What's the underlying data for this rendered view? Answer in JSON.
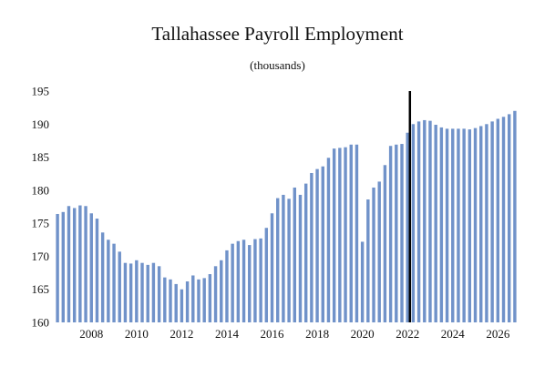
{
  "chart_data": {
    "type": "bar",
    "title": "Tallahassee Payroll Employment",
    "subtitle": "(thousands)",
    "xlabel": "",
    "ylabel": "",
    "ylim": [
      160,
      195
    ],
    "y_ticks": [
      160,
      165,
      170,
      175,
      180,
      185,
      190,
      195
    ],
    "x_ticks": [
      {
        "label": "2008",
        "index": 6
      },
      {
        "label": "2010",
        "index": 14
      },
      {
        "label": "2012",
        "index": 22
      },
      {
        "label": "2014",
        "index": 30
      },
      {
        "label": "2016",
        "index": 38
      },
      {
        "label": "2018",
        "index": 46
      },
      {
        "label": "2020",
        "index": 54
      },
      {
        "label": "2022",
        "index": 62
      },
      {
        "label": "2024",
        "index": 70
      },
      {
        "label": "2026",
        "index": 78
      }
    ],
    "forecast_start_index": 63,
    "bar_color": "#7092C9",
    "marker_color": "#000000",
    "series": [
      {
        "name": "Payroll Employment",
        "values": [
          176.4,
          176.7,
          177.6,
          177.3,
          177.7,
          177.6,
          176.5,
          175.7,
          173.6,
          172.5,
          171.9,
          170.7,
          169.0,
          168.9,
          169.4,
          169.0,
          168.7,
          169.0,
          168.5,
          166.8,
          166.5,
          165.8,
          165.0,
          166.2,
          167.1,
          166.5,
          166.7,
          167.3,
          168.5,
          169.4,
          170.9,
          171.9,
          172.3,
          172.5,
          171.7,
          172.6,
          172.7,
          174.3,
          176.5,
          178.8,
          179.3,
          178.7,
          180.4,
          179.3,
          181.0,
          182.6,
          183.2,
          183.6,
          184.9,
          186.3,
          186.4,
          186.5,
          186.9,
          186.9,
          172.2,
          178.6,
          180.4,
          181.3,
          183.8,
          186.7,
          186.9,
          187.0,
          188.7,
          190.0,
          190.4,
          190.6,
          190.5,
          189.9,
          189.5,
          189.3,
          189.3,
          189.3,
          189.3,
          189.2,
          189.4,
          189.7,
          190.0,
          190.4,
          190.8,
          191.1,
          191.5,
          192.0
        ]
      }
    ]
  }
}
